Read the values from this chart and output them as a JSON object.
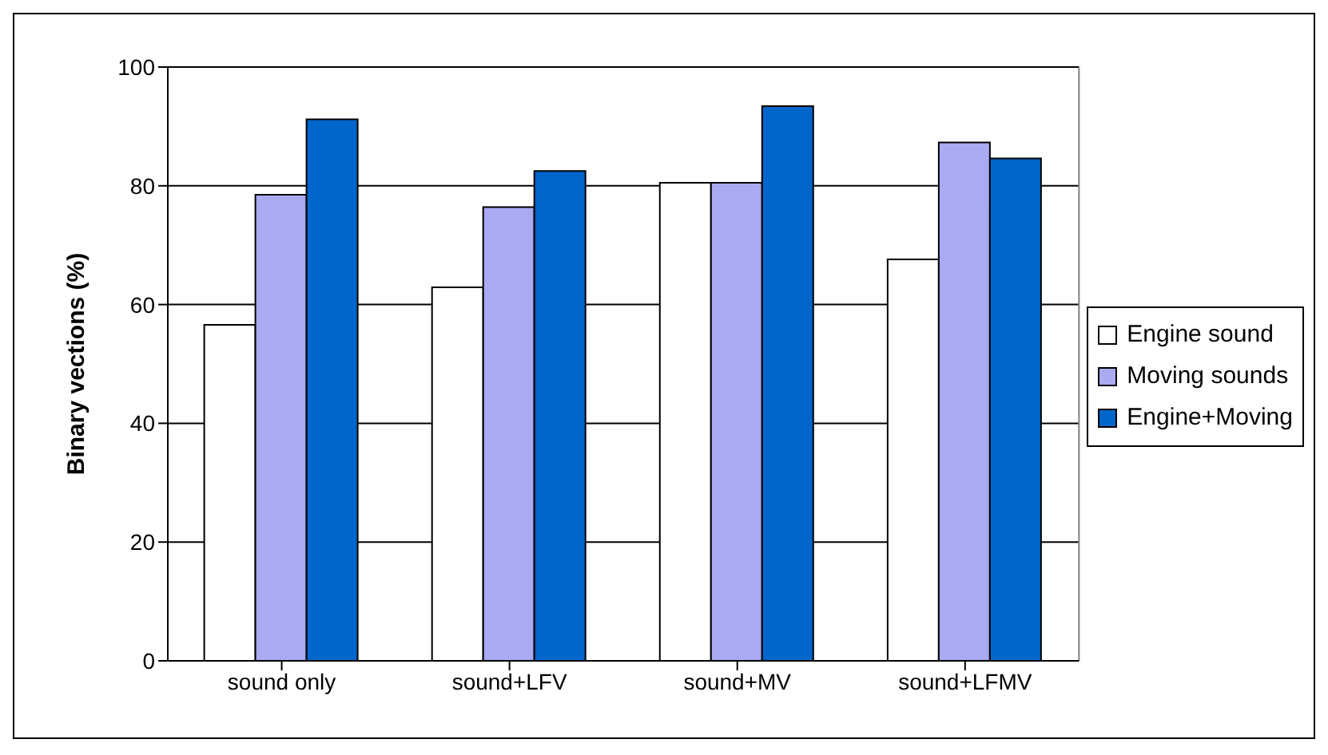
{
  "chart_data": {
    "type": "bar",
    "ylabel": "Binary vections (%)",
    "categories": [
      "sound only",
      "sound+LFV",
      "sound+MV",
      "sound+LFMV"
    ],
    "series": [
      {
        "name": "Engine sound",
        "color": "#ffffff",
        "values": [
          56.6,
          62.9,
          80.5,
          67.6
        ]
      },
      {
        "name": "Moving sounds",
        "color": "#aaaaf2",
        "values": [
          78.5,
          76.4,
          80.5,
          87.3
        ]
      },
      {
        "name": "Engine+Moving",
        "color": "#0066cc",
        "values": [
          91.2,
          82.5,
          93.4,
          84.6
        ]
      }
    ],
    "ylim": [
      0,
      100
    ],
    "yticks": [
      0,
      20,
      40,
      60,
      80,
      100
    ],
    "grid": "y",
    "legend": "right"
  }
}
